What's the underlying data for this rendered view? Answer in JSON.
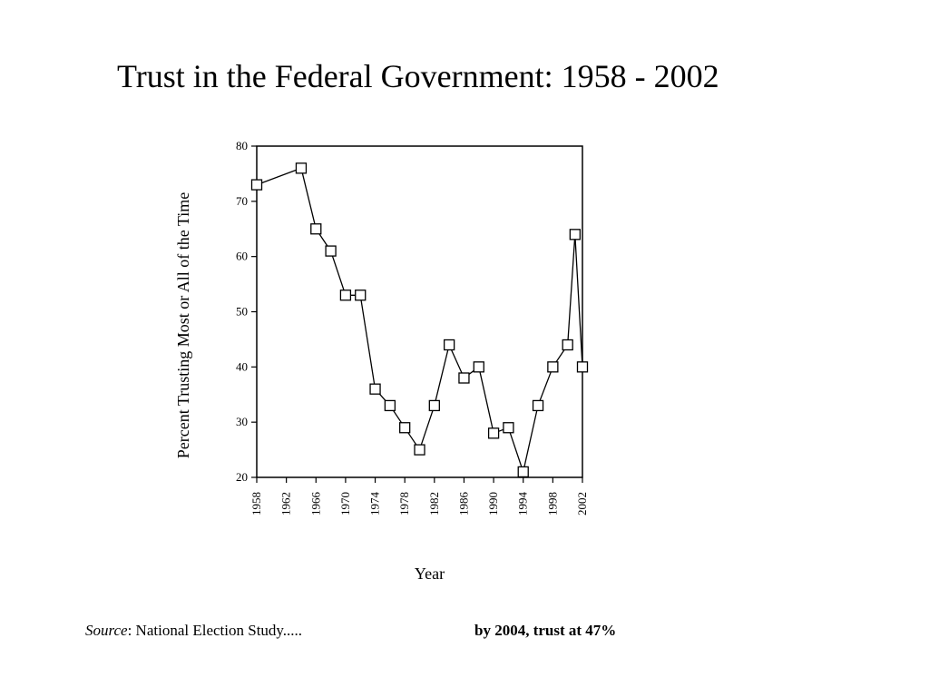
{
  "title": "Trust in the Federal Government: 1958 - 2002",
  "footer": {
    "source_label": "Source",
    "source_text": ": National Election Study.....",
    "note": "by 2004, trust at 47%"
  },
  "chart_data": {
    "type": "line",
    "xlabel": "Year",
    "ylabel": "Percent Trusting Most or All of the Time",
    "xlim": [
      1958,
      2002
    ],
    "ylim": [
      20,
      80
    ],
    "x_ticks": [
      1958,
      1962,
      1966,
      1970,
      1974,
      1978,
      1982,
      1986,
      1990,
      1994,
      1998,
      2002
    ],
    "y_ticks": [
      20,
      30,
      40,
      50,
      60,
      70,
      80
    ],
    "marker": "hollow-square",
    "grid": false,
    "series": [
      {
        "x": [
          1958,
          1964,
          1966,
          1968,
          1970,
          1972,
          1974,
          1976,
          1978,
          1980,
          1982,
          1984,
          1986,
          1988,
          1990,
          1992,
          1994,
          1996,
          1998,
          2000,
          2001,
          2002
        ],
        "y": [
          73,
          76,
          65,
          61,
          53,
          53,
          36,
          33,
          29,
          25,
          33,
          44,
          38,
          40,
          28,
          29,
          21,
          33,
          40,
          44,
          64,
          40
        ]
      }
    ]
  }
}
